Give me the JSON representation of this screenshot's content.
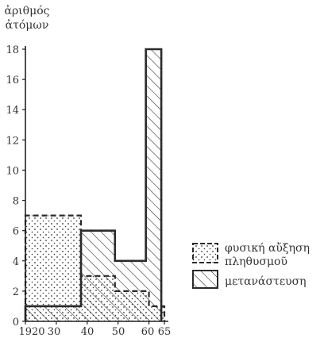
{
  "chart_data": {
    "type": "bar",
    "ylabel": "ἀριθμός ἀτόμων",
    "ylabel_lines": [
      "ἀριθμός",
      "ἀτόμων"
    ],
    "x_tick_labels": [
      "1920",
      "30",
      "40",
      "50",
      "60",
      "65"
    ],
    "x_ticks": [
      1920,
      1930,
      1940,
      1950,
      1960,
      1965
    ],
    "y_ticks": [
      0,
      2,
      4,
      6,
      8,
      10,
      12,
      14,
      16,
      18
    ],
    "xlim": [
      1920,
      1965
    ],
    "ylim": [
      0,
      18.5
    ],
    "grid": false,
    "legend_position": "right",
    "series": [
      {
        "name": "φυσική αὔξηση πληθυσμοῦ",
        "legend_lines": [
          "φυσική αὔξηση",
          "πληθυσμοῦ"
        ],
        "pattern": "dotted",
        "line_style": "dashed",
        "bins": [
          {
            "x_start": 1920,
            "x_end": 1938,
            "value": 7
          },
          {
            "x_start": 1938,
            "x_end": 1949,
            "value": 3
          },
          {
            "x_start": 1949,
            "x_end": 1960,
            "value": 2
          },
          {
            "x_start": 1960,
            "x_end": 1965,
            "value": 1
          }
        ]
      },
      {
        "name": "μετανάστευση",
        "legend_lines": [
          "μετανάστευση"
        ],
        "pattern": "hatched",
        "line_style": "solid",
        "bins": [
          {
            "x_start": 1920,
            "x_end": 1938,
            "value": 1
          },
          {
            "x_start": 1938,
            "x_end": 1949,
            "value": 6
          },
          {
            "x_start": 1949,
            "x_end": 1959,
            "value": 4
          },
          {
            "x_start": 1959,
            "x_end": 1964,
            "value": 18
          }
        ]
      }
    ]
  }
}
